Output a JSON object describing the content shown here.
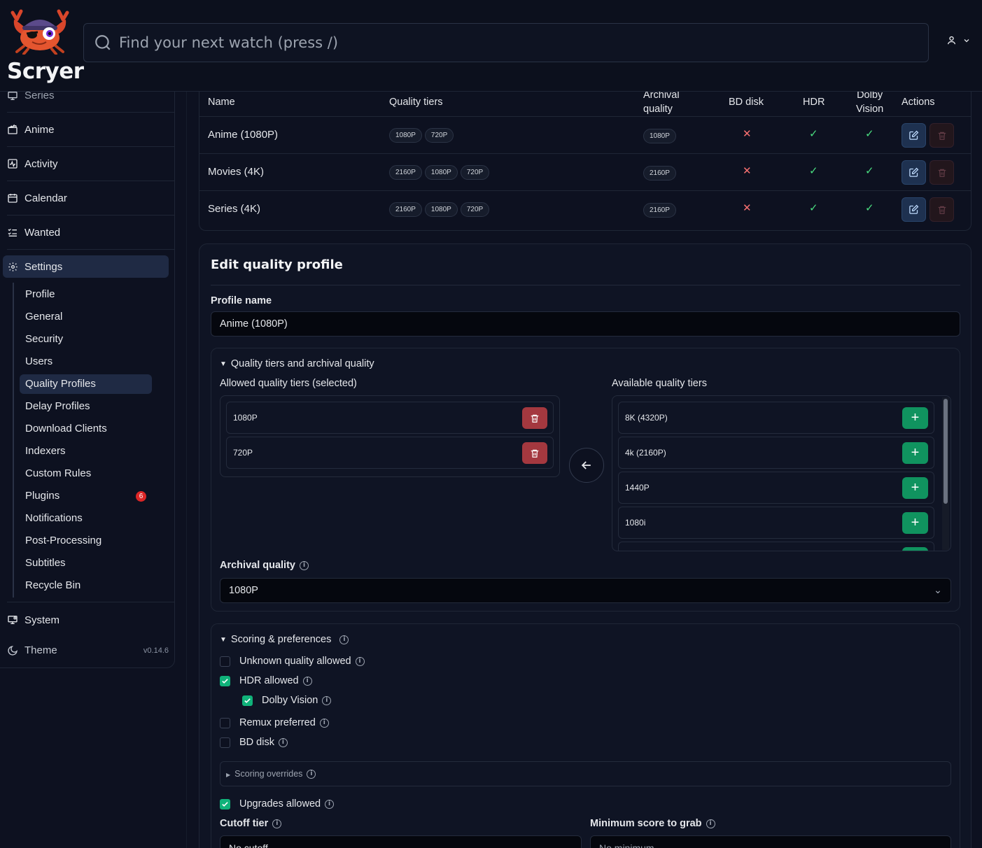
{
  "app": {
    "brand": "Scryer",
    "version": "v0.14.6"
  },
  "search": {
    "placeholder": "Find your next watch (press /)"
  },
  "sidebar": {
    "items": [
      {
        "label": "Series",
        "icon": "monitor-icon"
      },
      {
        "label": "Anime",
        "icon": "clapperboard-icon"
      },
      {
        "label": "Activity",
        "icon": "activity-icon"
      },
      {
        "label": "Calendar",
        "icon": "calendar-icon"
      },
      {
        "label": "Wanted",
        "icon": "list-check-icon"
      },
      {
        "label": "Settings",
        "icon": "gear-icon"
      }
    ],
    "settings_sub": [
      {
        "label": "Profile"
      },
      {
        "label": "General"
      },
      {
        "label": "Security"
      },
      {
        "label": "Users"
      },
      {
        "label": "Quality Profiles",
        "active": true
      },
      {
        "label": "Delay Profiles"
      },
      {
        "label": "Download Clients"
      },
      {
        "label": "Indexers"
      },
      {
        "label": "Custom Rules"
      },
      {
        "label": "Plugins",
        "badge": "6"
      },
      {
        "label": "Notifications"
      },
      {
        "label": "Post-Processing"
      },
      {
        "label": "Subtitles"
      },
      {
        "label": "Recycle Bin"
      }
    ],
    "system": "System",
    "theme": "Theme"
  },
  "profiles_table": {
    "headers": {
      "name": "Name",
      "tiers": "Quality tiers",
      "archival_1": "Archival",
      "archival_2": "quality",
      "bd": "BD disk",
      "hdr": "HDR",
      "dv_1": "Dolby",
      "dv_2": "Vision",
      "actions": "Actions"
    },
    "rows": [
      {
        "name": "Anime (1080P)",
        "tiers": [
          "1080P",
          "720P"
        ],
        "archival": "1080P",
        "bd": false,
        "hdr": true,
        "dv": true
      },
      {
        "name": "Movies (4K)",
        "tiers": [
          "2160P",
          "1080P",
          "720P"
        ],
        "archival": "2160P",
        "bd": false,
        "hdr": true,
        "dv": true
      },
      {
        "name": "Series (4K)",
        "tiers": [
          "2160P",
          "1080P",
          "720P"
        ],
        "archival": "2160P",
        "bd": false,
        "hdr": true,
        "dv": true
      }
    ]
  },
  "edit": {
    "title": "Edit quality profile",
    "profile_name_label": "Profile name",
    "profile_name_value": "Anime (1080P)",
    "tiers_section": {
      "title": "Quality tiers and archival quality",
      "allowed_label": "Allowed quality tiers (selected)",
      "available_label": "Available quality tiers",
      "allowed": [
        "1080P",
        "720P"
      ],
      "available": [
        "8K (4320P)",
        "4k (2160P)",
        "1440P",
        "1080i"
      ],
      "archival_label": "Archival quality",
      "archival_value": "1080P"
    },
    "scoring": {
      "title": "Scoring & preferences",
      "unknown_quality": {
        "label": "Unknown quality allowed",
        "checked": false
      },
      "hdr_allowed": {
        "label": "HDR allowed",
        "checked": true
      },
      "dolby_vision": {
        "label": "Dolby Vision",
        "checked": true
      },
      "remux_preferred": {
        "label": "Remux preferred",
        "checked": false
      },
      "bd_disk": {
        "label": "BD disk",
        "checked": false
      },
      "overrides_label": "Scoring overrides",
      "upgrades_allowed": {
        "label": "Upgrades allowed",
        "checked": true
      },
      "cutoff_label": "Cutoff tier",
      "cutoff_value": "No cutoff",
      "min_score_label": "Minimum score to grab",
      "min_score_placeholder": "No minimum"
    }
  },
  "colors": {
    "accent": "#10b27a",
    "danger": "#a4383f",
    "edit": "#1e3150",
    "active_nav": "#1f2a44"
  }
}
